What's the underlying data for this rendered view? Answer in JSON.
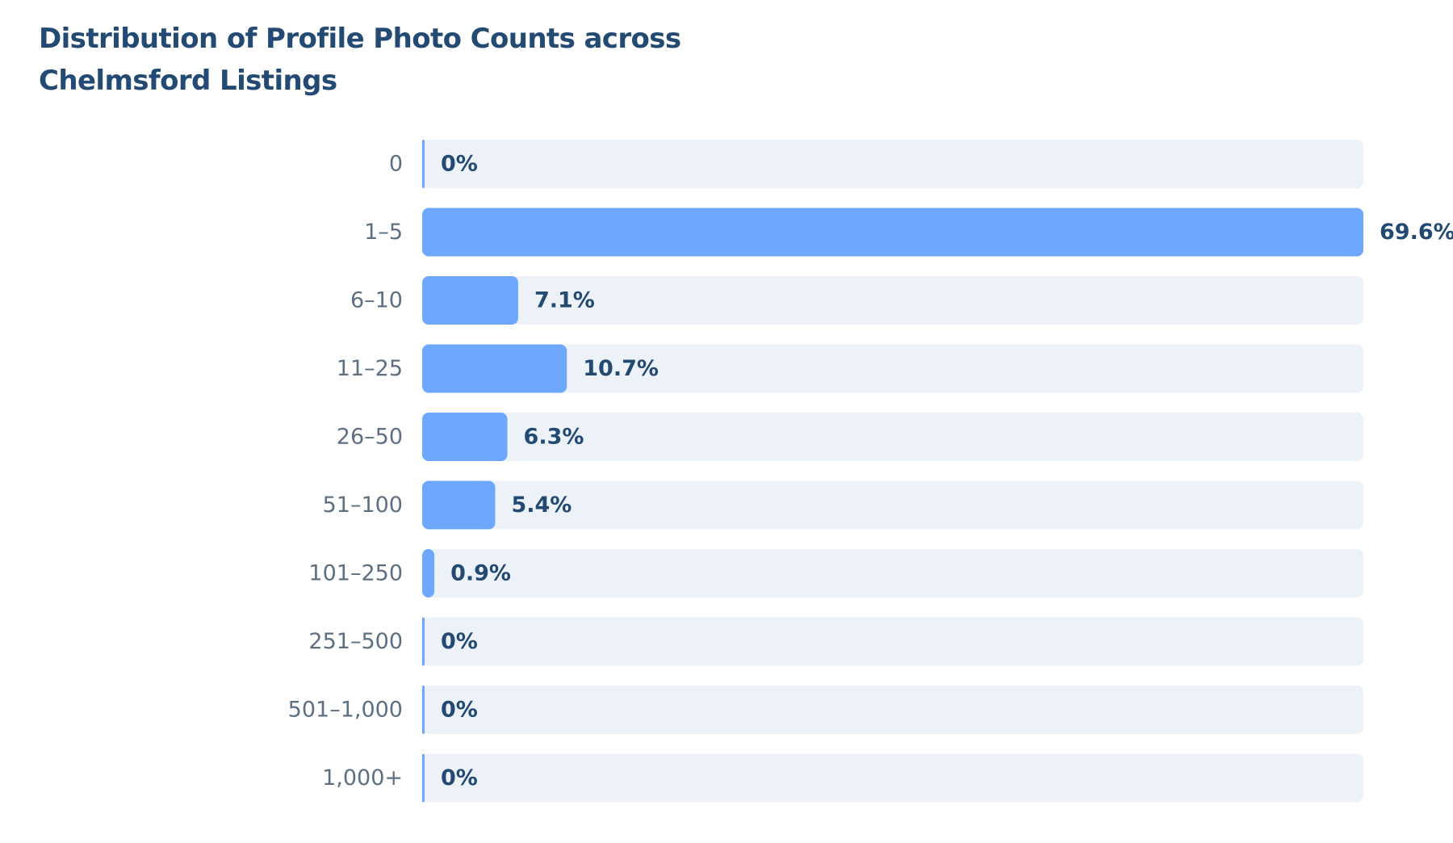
{
  "chart_data": {
    "type": "bar",
    "orientation": "horizontal",
    "title": "Distribution of Profile Photo Counts across Chelmsford Listings",
    "categories": [
      "0",
      "1–5",
      "6–10",
      "11–25",
      "26–50",
      "51–100",
      "101–250",
      "251–500",
      "501–1,000",
      "1,000+"
    ],
    "values": [
      0,
      69.6,
      7.1,
      10.7,
      6.3,
      5.4,
      0.9,
      0,
      0,
      0
    ],
    "value_labels": [
      "0%",
      "69.6%",
      "7.1%",
      "10.7%",
      "6.3%",
      "5.4%",
      "0.9%",
      "0%",
      "0%",
      "0%"
    ],
    "unit": "%",
    "xlim": [
      0,
      69.6
    ],
    "grid": false,
    "legend": "none",
    "colors": {
      "bar": "#6ea8fe",
      "track": "#edf2f9",
      "title": "#234a73",
      "category_label": "#5f6f82",
      "value_label": "#234a73"
    }
  }
}
